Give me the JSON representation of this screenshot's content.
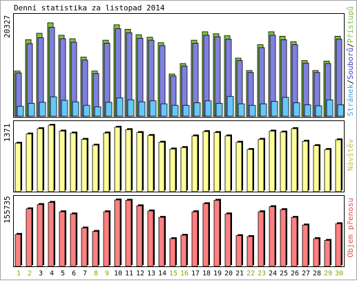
{
  "title": "Denní statistika za listopad 2014",
  "colors": {
    "frame": "#a3a3a3",
    "panel_bg": "#ffffff",
    "hits": "#80c040",
    "files": "#8080e0",
    "pages": "#66c8f8",
    "visits": "#ffff99",
    "kbytes": "#ff8080",
    "legend_visits": "#c8c050",
    "day_normal": "#000000",
    "day_weekend": "#7aad00",
    "label_hits": "#80c040",
    "label_sep": "#000000",
    "label_files": "#4040c0",
    "label_pages": "#40a0e0",
    "label_kbytes": "#e05050"
  },
  "chart_data": [
    {
      "type": "bar",
      "title": "Denní statistika za listopad 2014",
      "categories": [
        "1",
        "2",
        "3",
        "4",
        "5",
        "6",
        "7",
        "8",
        "9",
        "10",
        "11",
        "12",
        "13",
        "14",
        "15",
        "16",
        "17",
        "18",
        "19",
        "20",
        "21",
        "22",
        "23",
        "24",
        "25",
        "26",
        "27",
        "28",
        "29",
        "30"
      ],
      "weekend_days": [
        1,
        2,
        8,
        9,
        15,
        16,
        22,
        23,
        29,
        30
      ],
      "ymax_label": "20327",
      "ylim": [
        0,
        20327
      ],
      "legend": [
        "Přístupů",
        "/",
        "Souborů",
        "/",
        "Stránek"
      ],
      "series": [
        {
          "name": "Přístupů",
          "values": [
            9100,
            15400,
            16700,
            18800,
            16300,
            15600,
            11900,
            9100,
            15300,
            18400,
            17500,
            16400,
            15900,
            14800,
            8500,
            10600,
            15300,
            17000,
            16600,
            16200,
            11700,
            9200,
            14400,
            17000,
            16100,
            15000,
            11200,
            9200,
            11100,
            16100
          ]
        },
        {
          "name": "Souborů",
          "values": [
            8700,
            14600,
            15800,
            17900,
            15600,
            14900,
            11300,
            8600,
            14700,
            17600,
            16800,
            15700,
            15300,
            14200,
            8100,
            10100,
            14700,
            16300,
            16000,
            15500,
            11200,
            8800,
            13800,
            16300,
            15400,
            14400,
            10700,
            8800,
            10600,
            15500
          ]
        },
        {
          "name": "Stránek",
          "values": [
            2000,
            2600,
            2800,
            3900,
            3200,
            2900,
            2200,
            1900,
            2800,
            3700,
            3300,
            2900,
            3100,
            2500,
            2200,
            2200,
            2700,
            3100,
            2600,
            4000,
            2500,
            2200,
            2500,
            3000,
            3800,
            2700,
            2300,
            2100,
            3300,
            2300
          ]
        }
      ]
    },
    {
      "type": "bar",
      "ymax_label": "1371",
      "ylim": [
        0,
        1371
      ],
      "legend": [
        "Návštěv"
      ],
      "series": [
        {
          "name": "Návštěv",
          "values": [
            1000,
            1190,
            1300,
            1371,
            1250,
            1210,
            1080,
            960,
            1210,
            1330,
            1280,
            1220,
            1160,
            1020,
            880,
            910,
            1150,
            1240,
            1220,
            1150,
            1020,
            870,
            1080,
            1250,
            1230,
            1300,
            1040,
            950,
            870,
            1070
          ]
        }
      ]
    },
    {
      "type": "bar",
      "ymax_label": "155735",
      "ylim": [
        0,
        155735
      ],
      "legend": [
        "Objem přenosu"
      ],
      "series": [
        {
          "name": "Objem přenosu",
          "values": [
            75000,
            135000,
            145000,
            150000,
            128000,
            123000,
            90000,
            82000,
            128000,
            155735,
            155000,
            142000,
            130000,
            115000,
            65000,
            73000,
            128000,
            147000,
            155000,
            123000,
            72000,
            70000,
            128000,
            140000,
            133000,
            115000,
            97000,
            65000,
            61000,
            100000
          ]
        }
      ]
    }
  ]
}
